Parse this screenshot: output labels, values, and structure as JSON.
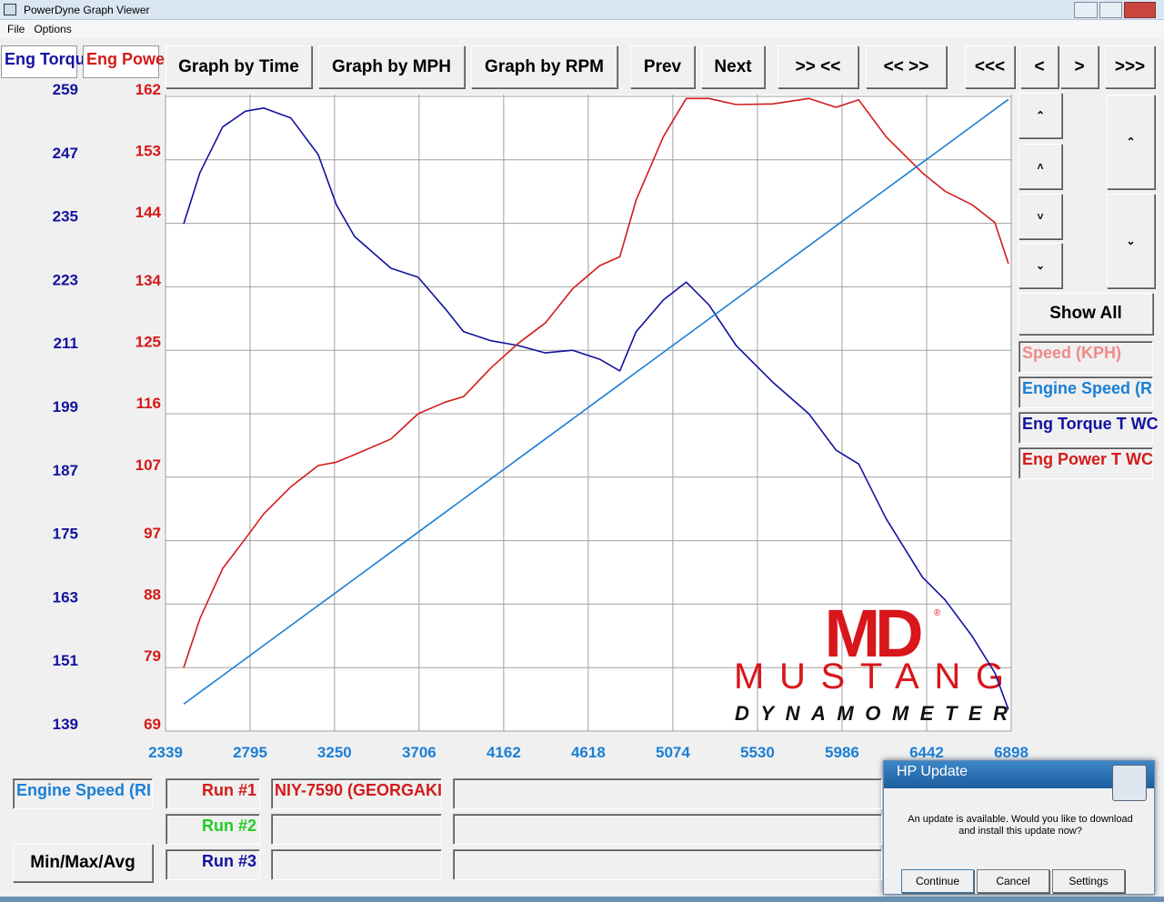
{
  "window": {
    "title": "PowerDyne Graph Viewer",
    "menu": [
      "File",
      "Options"
    ]
  },
  "toolbar": [
    "Graph by Time",
    "Graph by MPH",
    "Graph by RPM",
    "Prev",
    "Next",
    ">> <<",
    "<< >>",
    "<<<",
    "<",
    ">",
    ">>>"
  ],
  "side": {
    "show_all": "Show All",
    "channels": [
      "Speed (KPH)",
      "Engine Speed (R",
      "Eng Torque T WC",
      "Eng Power T WC"
    ]
  },
  "bottom": {
    "channel": "Engine Speed (RI",
    "min_max": "Min/Max/Avg",
    "runs": [
      {
        "label": "Run #1",
        "name": "NIY-7590 (GEORGAKI"
      },
      {
        "label": "Run #2"
      },
      {
        "label": "Run #3"
      }
    ]
  },
  "logo": {
    "mark": "MD",
    "registered": "®",
    "brand": "MUSTANG",
    "sub": "DYNAMOMETER"
  },
  "dialog": {
    "title": "HP Update",
    "message": "An update is available. Would you like to download and install this update now?",
    "buttons": [
      "Continue",
      "Cancel",
      "Settings"
    ]
  },
  "chart_data": {
    "type": "line",
    "ylabel": "Eng Torqu",
    "y2label": "Eng Powe",
    "x": [
      2437,
      2525,
      2647,
      2770,
      2868,
      3015,
      3162,
      3260,
      3358,
      3554,
      3701,
      3848,
      3946,
      4093,
      4240,
      4386,
      4533,
      4680,
      4788,
      4876,
      5023,
      5146,
      5268,
      5415,
      5611,
      5807,
      5954,
      6076,
      6223,
      6419,
      6541,
      6688,
      6810,
      6883
    ],
    "xlim": [
      2339,
      6898
    ],
    "xticks": [
      2339,
      2795,
      3250,
      3706,
      4162,
      4618,
      5074,
      5530,
      5986,
      6442,
      6898
    ],
    "ylim": [
      139,
      259
    ],
    "yticks": [
      139,
      151,
      163,
      175,
      187,
      199,
      211,
      223,
      235,
      247,
      259
    ],
    "y2lim": [
      69,
      162
    ],
    "y2ticks": [
      69,
      79,
      88,
      97,
      107,
      116,
      125,
      134,
      144,
      153,
      162
    ],
    "y3lim": [
      2239,
      6905
    ],
    "grid": true,
    "series": [
      {
        "name": "Eng Torque T WC",
        "color": "#1212a0",
        "values": [
          234.9,
          244.6,
          253.2,
          256.2,
          256.8,
          254.9,
          248.0,
          238.5,
          232.5,
          226.5,
          224.8,
          218.8,
          214.5,
          212.8,
          211.9,
          210.5,
          211.0,
          209.3,
          207.1,
          214.5,
          220.5,
          223.9,
          219.6,
          211.9,
          205.0,
          199.0,
          192.1,
          189.5,
          179.2,
          168.1,
          163.8,
          156.9,
          150.0,
          143.1
        ]
      },
      {
        "name": "Eng Power T WC",
        "color": "#d41a1a",
        "axis": "y2",
        "values": [
          78.3,
          85.5,
          92.8,
          97.2,
          100.8,
          104.8,
          107.9,
          108.4,
          109.5,
          111.8,
          115.5,
          117.2,
          118.0,
          122.2,
          125.8,
          128.8,
          133.8,
          137.2,
          138.5,
          146.8,
          156.1,
          161.7,
          161.7,
          160.8,
          160.9,
          161.7,
          160.4,
          161.5,
          156.1,
          150.8,
          148.1,
          146.1,
          143.5,
          137.5
        ]
      },
      {
        "name": "Engine Speed (R",
        "color": "#1a7fd6",
        "axis": "y3",
        "values": [
          2437,
          2525,
          2647,
          2770,
          2868,
          3015,
          3162,
          3260,
          3358,
          3554,
          3701,
          3848,
          3946,
          4093,
          4240,
          4386,
          4533,
          4680,
          4788,
          4876,
          5023,
          5146,
          5268,
          5415,
          5611,
          5807,
          5954,
          6076,
          6223,
          6419,
          6541,
          6688,
          6810,
          6883
        ]
      }
    ]
  }
}
